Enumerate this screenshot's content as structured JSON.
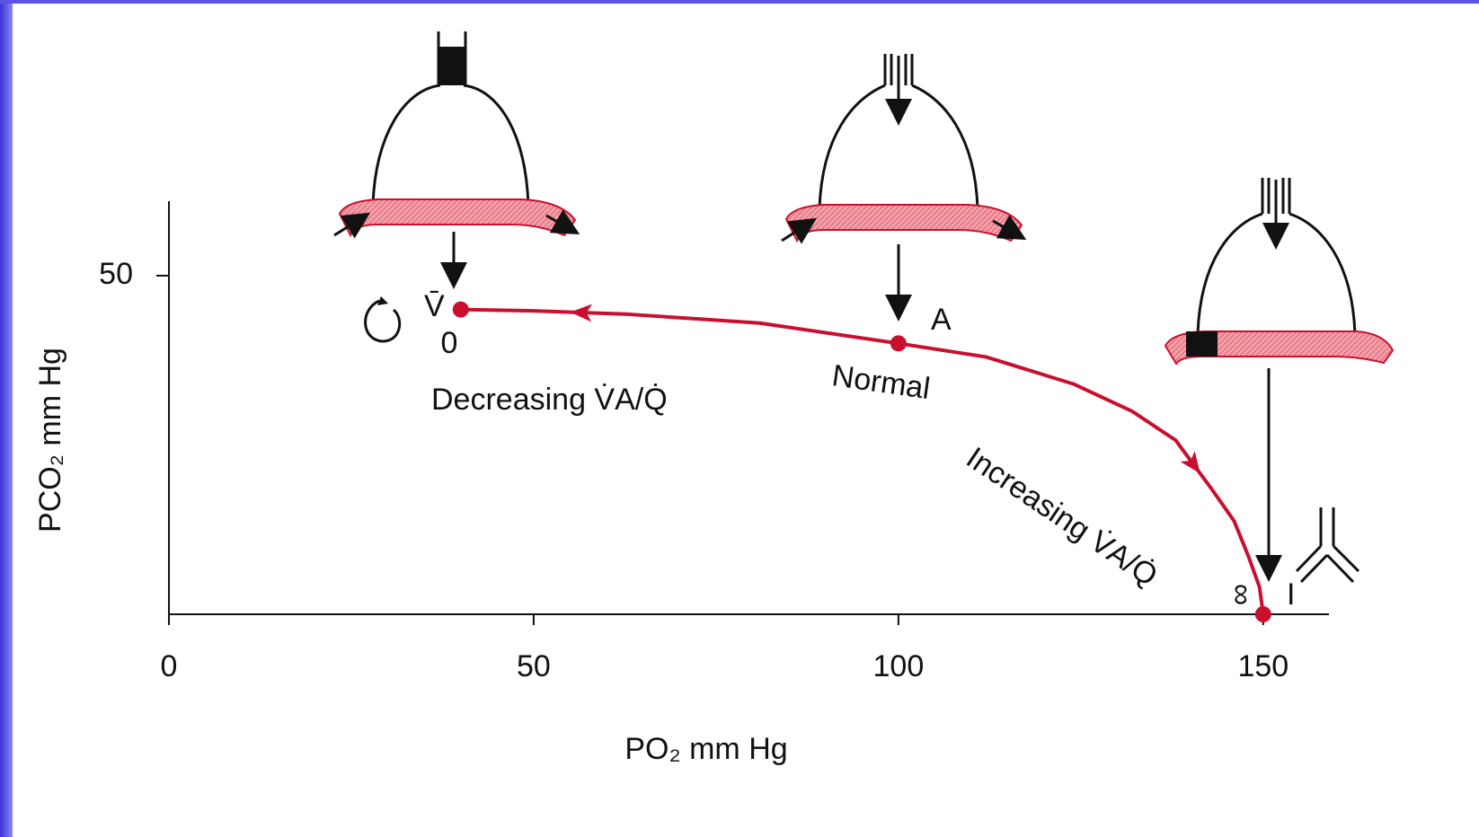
{
  "chart_data": {
    "type": "line",
    "x_label": "PO₂ mm Hg",
    "y_label": "PCO₂ mm Hg",
    "x": [
      40,
      50,
      63,
      81,
      100,
      112,
      124,
      132,
      138,
      143,
      146,
      148,
      149.5,
      150
    ],
    "series": [
      {
        "color": "#c8102e",
        "values": [
          45,
          44.8,
          44.3,
          43,
          40,
          38,
          34,
          30,
          25.7,
          18.4,
          13.8,
          8.5,
          4,
          0
        ]
      }
    ],
    "markers": [
      0,
      4,
      13
    ],
    "xlim": [
      0,
      160
    ],
    "ylim": [
      0,
      61
    ],
    "xticks": [
      0,
      50,
      100,
      150
    ],
    "yticks": [
      50
    ],
    "annotations": {
      "venous": "V̄",
      "zero": "0",
      "alveolar": "A",
      "normal": "Normal",
      "decreasing": "Decreasing V̇A/Q̇",
      "increasing": "Increasing V̇A/Q̇",
      "infinity": "∞",
      "inspired": "I"
    }
  }
}
